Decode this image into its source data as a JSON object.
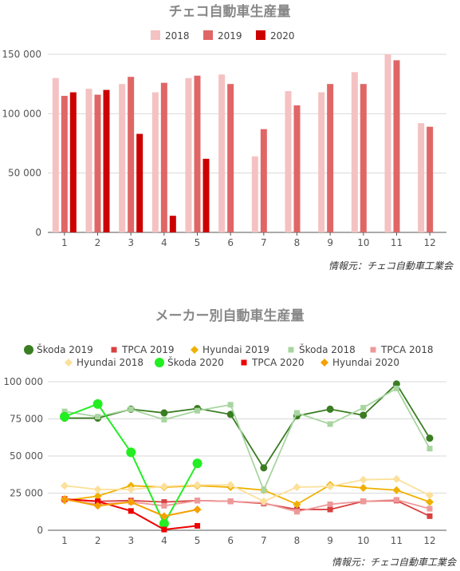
{
  "chart_data": [
    {
      "type": "bar",
      "title": "チェコ自動車生産量",
      "categories": [
        "1",
        "2",
        "3",
        "4",
        "5",
        "6",
        "7",
        "8",
        "9",
        "10",
        "11",
        "12"
      ],
      "ylim": [
        0,
        150000
      ],
      "yticks": [
        0,
        50000,
        100000,
        150000
      ],
      "ytick_labels": [
        "0",
        "50 000",
        "100 000",
        "150 000"
      ],
      "grid": true,
      "legend_position": "top",
      "series": [
        {
          "name": "2018",
          "color": "#f4c2c2",
          "values": [
            130000,
            121000,
            125000,
            118000,
            130000,
            133000,
            64000,
            119000,
            118000,
            135000,
            150000,
            92000
          ]
        },
        {
          "name": "2019",
          "color": "#e06666",
          "values": [
            115000,
            116000,
            131000,
            126000,
            132000,
            125000,
            87000,
            107000,
            125000,
            125000,
            145000,
            89000
          ]
        },
        {
          "name": "2020",
          "color": "#cc0000",
          "values": [
            118000,
            120000,
            83000,
            14000,
            62000,
            null,
            null,
            null,
            null,
            null,
            null,
            null
          ]
        }
      ],
      "source": "情報元：チェコ自動車工業会"
    },
    {
      "type": "line",
      "title": "メーカー別自動車生産量",
      "categories": [
        "1",
        "2",
        "3",
        "4",
        "5",
        "6",
        "7",
        "8",
        "9",
        "10",
        "11",
        "12"
      ],
      "ylim": [
        0,
        100000
      ],
      "yticks": [
        0,
        25000,
        50000,
        75000,
        100000
      ],
      "ytick_labels": [
        "0",
        "25 000",
        "50 000",
        "75 000",
        "100 000"
      ],
      "grid": true,
      "legend_position": "top",
      "series": [
        {
          "name": "Škoda 2019",
          "color": "#3a7d22",
          "marker": "circle",
          "values": [
            75500,
            75500,
            81500,
            79000,
            82000,
            78000,
            42000,
            77000,
            81500,
            77500,
            98500,
            62000
          ]
        },
        {
          "name": "TPCA 2019",
          "color": "#d94040",
          "marker": "square",
          "values": [
            21000,
            19500,
            20000,
            19000,
            20000,
            19500,
            18000,
            14000,
            14000,
            19500,
            20000,
            9500
          ]
        },
        {
          "name": "Hyundai 2019",
          "color": "#f0b000",
          "marker": "diamond",
          "values": [
            20000,
            23000,
            30000,
            29000,
            30000,
            29000,
            27000,
            17500,
            30500,
            28500,
            27000,
            19000
          ]
        },
        {
          "name": "Škoda 2018",
          "color": "#a8d5a0",
          "marker": "square",
          "values": [
            80000,
            76500,
            81500,
            74500,
            80500,
            84500,
            27000,
            79000,
            71500,
            82500,
            95500,
            55000
          ]
        },
        {
          "name": "TPCA 2018",
          "color": "#ee9999",
          "marker": "square",
          "values": [
            20500,
            17500,
            19000,
            16500,
            20000,
            19500,
            18500,
            12500,
            17500,
            19500,
            20500,
            14500
          ]
        },
        {
          "name": "Hyundai 2018",
          "color": "#fce09a",
          "marker": "diamond",
          "values": [
            30000,
            27500,
            27500,
            29500,
            30500,
            30500,
            19500,
            29000,
            29500,
            34000,
            34500,
            23500
          ]
        },
        {
          "name": "Škoda 2020",
          "color": "#22ee22",
          "marker": "circle",
          "values": [
            76500,
            85000,
            52500,
            4500,
            45000,
            null,
            null,
            null,
            null,
            null,
            null,
            null
          ]
        },
        {
          "name": "TPCA 2020",
          "color": "#ee0000",
          "marker": "square",
          "values": [
            21000,
            19500,
            13000,
            500,
            3000,
            null,
            null,
            null,
            null,
            null,
            null,
            null
          ]
        },
        {
          "name": "Hyundai 2020",
          "color": "#f5a000",
          "marker": "diamond",
          "values": [
            21000,
            16500,
            19000,
            9500,
            14000,
            null,
            null,
            null,
            null,
            null,
            null,
            null
          ]
        }
      ],
      "source": "情報元：チェコ自動車工業会"
    }
  ]
}
